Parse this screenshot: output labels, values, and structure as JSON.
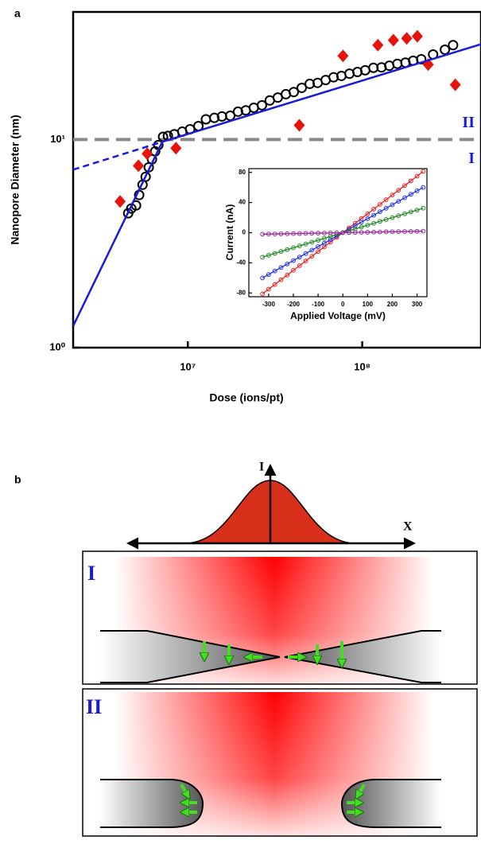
{
  "chart_data": [
    {
      "type": "scatter",
      "panel_label": "a",
      "x_label": "Dose (ions/pt)",
      "y_label": "Nanopore Diameter (nm)",
      "x_scale": "log",
      "y_scale": "log",
      "xlim": [
        2200000,
        480000000
      ],
      "ylim": [
        1,
        41
      ],
      "xticks": [
        {
          "value": 10000000,
          "label": "10⁷"
        },
        {
          "value": 100000000,
          "label": "10⁸"
        }
      ],
      "yticks": [
        {
          "value": 1,
          "label": "10⁰"
        },
        {
          "value": 10,
          "label": "10¹"
        }
      ],
      "threshold": 10,
      "threshold_color": "#888888",
      "region_labels": [
        "II",
        "I"
      ],
      "region_color": "#1a1adc",
      "series": [
        {
          "marker": "circle",
          "color": "#000000",
          "x": [
            4550000,
            4740000,
            5050000,
            5260000,
            5500000,
            5730000,
            5970000,
            6230000,
            6500000,
            6780000,
            7210000,
            7690000,
            8360000,
            9290000,
            10300000,
            11500000,
            12700000,
            14200000,
            15700000,
            17500000,
            19400000,
            21500000,
            23900000,
            26600000,
            29500000,
            32800000,
            36500000,
            40500000,
            45000000,
            50000000,
            55500000,
            61700000,
            68500000,
            76000000,
            84500000,
            93900000,
            104000000,
            116000000,
            129000000,
            143000000,
            159000000,
            177000000,
            196000000,
            218000000,
            255000000,
            298000000,
            332000000
          ],
          "values": [
            4.42,
            4.66,
            4.82,
            5.41,
            6.06,
            6.62,
            7.35,
            8.03,
            8.77,
            9.4,
            10.3,
            10.4,
            10.6,
            10.9,
            11.2,
            11.6,
            12.5,
            12.7,
            12.9,
            13.0,
            13.6,
            13.8,
            14.2,
            14.6,
            15.4,
            15.9,
            16.5,
            16.9,
            17.7,
            18.5,
            18.7,
            19.3,
            19.9,
            20.2,
            20.7,
            21.1,
            21.5,
            22.1,
            22.2,
            22.6,
            23.1,
            23.4,
            23.9,
            24.3,
            25.6,
            27.0,
            28.4
          ]
        },
        {
          "marker": "diamond",
          "color": "#e8120c",
          "x": [
            4090000,
            5210000,
            5850000,
            8550000,
            43600000,
            77600000,
            123000000,
            151000000,
            180000000,
            207000000,
            239000000,
            342000000
          ],
          "values": [
            5.04,
            7.48,
            8.54,
            9.08,
            11.7,
            25.2,
            28.4,
            30.0,
            30.6,
            31.3,
            22.9,
            18.3
          ]
        },
        {
          "marker": "line",
          "color": "#1a1adc",
          "x": [
            2200000,
            7140000,
            480000000
          ],
          "values": [
            1.27,
            9.74,
            28.7
          ]
        },
        {
          "marker": "dashed-line",
          "color": "#1a1adc",
          "x": [
            2200000,
            7140000
          ],
          "values": [
            7.16,
            9.74
          ]
        }
      ]
    },
    {
      "type": "line",
      "x_label": "Applied Voltage (mV)",
      "y_label": "Current (nA)",
      "xlim": [
        -380,
        340
      ],
      "ylim": [
        -85,
        85
      ],
      "xticks": [
        -300,
        -200,
        -100,
        0,
        100,
        200,
        300
      ],
      "yticks": [
        -80,
        -40,
        0,
        40,
        80
      ],
      "x": [
        -325,
        -300,
        -275,
        -250,
        -225,
        -200,
        -175,
        -150,
        -125,
        -100,
        -75,
        -50,
        -25,
        0,
        25,
        50,
        75,
        100,
        125,
        150,
        175,
        200,
        225,
        250,
        275,
        300,
        325
      ],
      "series": [
        {
          "color": "#ee2222",
          "values": [
            -81.3,
            -75,
            -68.8,
            -62.5,
            -56.3,
            -50,
            -43.8,
            -37.5,
            -31.3,
            -25,
            -18.8,
            -12.5,
            -6.3,
            0,
            6.3,
            12.5,
            18.8,
            25,
            31.3,
            37.5,
            43.8,
            50,
            56.3,
            62.5,
            68.8,
            75,
            81.3
          ]
        },
        {
          "color": "#2233ee",
          "values": [
            -60.1,
            -55.5,
            -50.9,
            -46.3,
            -41.6,
            -37,
            -32.4,
            -27.8,
            -23.1,
            -18.5,
            -13.9,
            -9.3,
            -4.6,
            0,
            4.6,
            9.3,
            13.9,
            18.5,
            23.1,
            27.8,
            32.4,
            37,
            41.6,
            46.3,
            50.9,
            55.5,
            60.1
          ]
        },
        {
          "color": "#228822",
          "values": [
            -32.5,
            -30,
            -27.5,
            -25,
            -22.5,
            -20,
            -17.5,
            -15,
            -12.5,
            -10,
            -7.5,
            -5,
            -2.5,
            0,
            2.5,
            5,
            7.5,
            10,
            12.5,
            15,
            17.5,
            20,
            22.5,
            25,
            27.5,
            30,
            32.5
          ]
        },
        {
          "color": "#992299",
          "values": [
            -2,
            -1.8,
            -1.7,
            -1.5,
            -1.4,
            -1.2,
            -1.1,
            -0.9,
            -0.8,
            -0.6,
            -0.5,
            -0.3,
            -0.2,
            0,
            0.2,
            0.3,
            0.5,
            0.6,
            0.8,
            0.9,
            1.1,
            1.2,
            1.4,
            1.5,
            1.7,
            1.8,
            2
          ]
        }
      ]
    }
  ],
  "diagram": {
    "panel_label": "b",
    "axis_y": "I",
    "axis_x": "X",
    "regimes": [
      "I",
      "II"
    ]
  }
}
